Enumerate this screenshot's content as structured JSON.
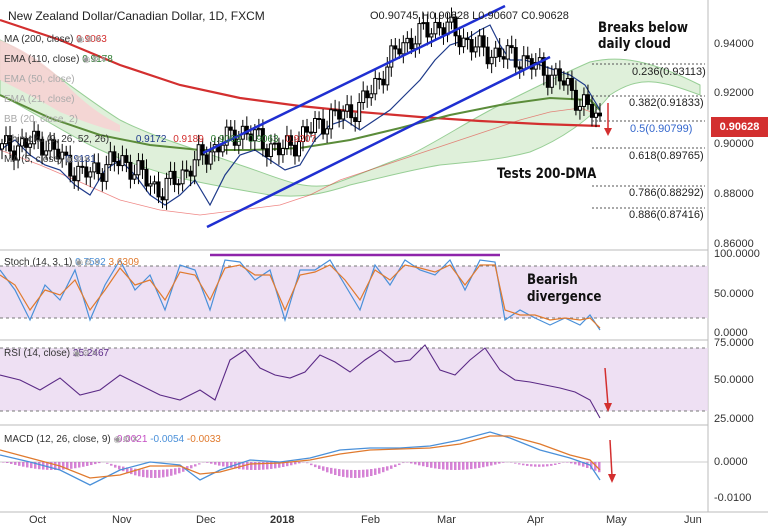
{
  "title": "New Zealand Dollar/Canadian Dollar, 1D, FXCM",
  "ohlc": {
    "open": "O0.90745",
    "high": "H0.90828",
    "low": "L0.90607",
    "close": "C0.90628"
  },
  "last_price": "0.90628",
  "indicators_main": [
    {
      "label": "MA (200, close)",
      "value": "0.9063",
      "color": "#d32f2f"
    },
    {
      "label": "EMA (110, close)",
      "value": "0.9178",
      "color": "#2e7d32"
    },
    {
      "label": "EMA (50, close)",
      "value": "",
      "color": "#999999"
    },
    {
      "label": "EMA (21, close)",
      "value": "",
      "color": "#999999"
    },
    {
      "label": "BB (20, close, 2)",
      "value": "",
      "color": "#999999"
    },
    {
      "label": "Ichimoku (9, 26, 52, 26)",
      "value": "",
      "color": "#333333"
    },
    {
      "label": "MA (5, close)",
      "value": "0.9131",
      "color": "#1e3a8a"
    }
  ],
  "ichimoku_values": [
    "0.9172",
    "0.9189",
    "0.9063",
    "0.9063",
    "0.9207"
  ],
  "annotations": {
    "cloud": [
      "Breaks below",
      "daily cloud"
    ],
    "dma": "Tests 200-DMA",
    "divergence": [
      "Bearish",
      "divergence"
    ]
  },
  "fib_levels": [
    "0.236(0.93113)",
    "0.382(0.91833)",
    "0.5(0.90799)",
    "0.618(0.89765)",
    "0.786(0.88292)",
    "0.886(0.87416)"
  ],
  "stoch": {
    "label": "Stoch (14, 3, 1)",
    "k": "0.7592",
    "d": "3.6309"
  },
  "rsi": {
    "label": "RSI (14, close)",
    "value": "25.2467"
  },
  "macd": {
    "label": "MACD (12, 26, close, 9)",
    "hist": "-0.0021",
    "macd": "-0.0054",
    "signal": "-0.0033"
  },
  "x_labels": [
    "Oct",
    "Nov",
    "Dec",
    "2018",
    "Feb",
    "Mar",
    "Apr",
    "May",
    "Jun"
  ],
  "chart_data": {
    "type": "line",
    "title": "New Zealand Dollar/Canadian Dollar, 1D, FXCM",
    "price_axis": [
      "0.94000",
      "0.92000",
      "0.90000",
      "0.88000",
      "0.86000"
    ],
    "ylim": [
      0.86,
      0.95
    ],
    "stoch_axis": [
      "100.0000",
      "50.0000",
      "0.0000"
    ],
    "rsi_axis": [
      "75.0000",
      "50.0000",
      "25.0000"
    ],
    "macd_axis": [
      "0.0000",
      "-0.0100"
    ],
    "series": [
      {
        "name": "MA (200, close)",
        "values": [
          0.93,
          0.9285,
          0.926,
          0.924,
          0.922,
          0.9195,
          0.917,
          0.915,
          0.913,
          0.911,
          0.909,
          0.9075,
          0.9065,
          0.9063
        ]
      },
      {
        "name": "EMA (110, close)",
        "values": [
          0.92,
          0.915,
          0.91,
          0.905,
          0.901,
          0.899,
          0.899,
          0.901,
          0.904,
          0.908,
          0.913,
          0.9165,
          0.9185,
          0.9178
        ]
      },
      {
        "name": "Close",
        "values": [
          0.896,
          0.899,
          0.886,
          0.892,
          0.88,
          0.893,
          0.903,
          0.895,
          0.906,
          0.912,
          0.935,
          0.943,
          0.933,
          0.93,
          0.922,
          0.9063
        ]
      }
    ]
  }
}
